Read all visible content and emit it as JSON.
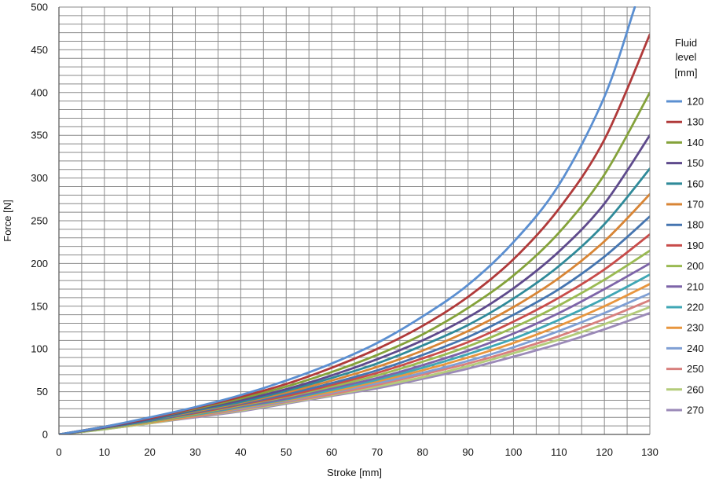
{
  "chart_data": {
    "type": "line",
    "title": "",
    "xlabel": "Stroke [mm]",
    "ylabel": "Force [N]",
    "xlim": [
      0,
      130
    ],
    "ylim": [
      0,
      500
    ],
    "xticks": [
      0,
      10,
      20,
      30,
      40,
      50,
      60,
      70,
      80,
      90,
      100,
      110,
      120,
      130
    ],
    "yticks": [
      0,
      50,
      100,
      150,
      200,
      250,
      300,
      350,
      400,
      450,
      500
    ],
    "grid": true,
    "legend_title": [
      "Fluid",
      "level",
      "[mm]"
    ],
    "legend_position": "right",
    "series": [
      {
        "name": "120",
        "color": "#5b8fd1",
        "x": [
          0,
          10,
          20,
          30,
          40,
          50,
          60,
          70,
          80,
          90,
          100,
          110,
          120,
          126.7
        ],
        "y": [
          0,
          9,
          20,
          32,
          46,
          63,
          83,
          107,
          138,
          175,
          225,
          292,
          395,
          500
        ]
      },
      {
        "name": "130",
        "color": "#b03a3a",
        "x": [
          0,
          10,
          20,
          30,
          40,
          50,
          60,
          70,
          80,
          90,
          100,
          110,
          120,
          130
        ],
        "y": [
          0,
          9,
          19,
          31,
          44,
          59,
          78,
          100,
          127,
          161,
          205,
          264,
          345,
          468
        ]
      },
      {
        "name": "140",
        "color": "#84a23a",
        "x": [
          0,
          10,
          20,
          30,
          40,
          50,
          60,
          70,
          80,
          90,
          100,
          110,
          120,
          130
        ],
        "y": [
          0,
          9,
          19,
          30,
          42,
          56,
          73,
          93,
          117,
          148,
          186,
          236,
          304,
          400
        ]
      },
      {
        "name": "150",
        "color": "#5e4a8c",
        "x": [
          0,
          10,
          20,
          30,
          40,
          50,
          60,
          70,
          80,
          90,
          100,
          110,
          120,
          130
        ],
        "y": [
          0,
          8,
          18,
          29,
          40,
          53,
          69,
          88,
          110,
          137,
          171,
          214,
          270,
          350
        ]
      },
      {
        "name": "160",
        "color": "#2f8a99",
        "x": [
          0,
          10,
          20,
          30,
          40,
          50,
          60,
          70,
          80,
          90,
          100,
          110,
          120,
          130
        ],
        "y": [
          0,
          8,
          17,
          28,
          38,
          51,
          66,
          83,
          104,
          128,
          159,
          197,
          246,
          311
        ]
      },
      {
        "name": "170",
        "color": "#d88535",
        "x": [
          0,
          10,
          20,
          30,
          40,
          50,
          60,
          70,
          80,
          90,
          100,
          110,
          120,
          130
        ],
        "y": [
          0,
          8,
          17,
          27,
          37,
          49,
          63,
          79,
          98,
          121,
          149,
          183,
          226,
          281
        ]
      },
      {
        "name": "180",
        "color": "#4575b0",
        "x": [
          0,
          10,
          20,
          30,
          40,
          50,
          60,
          70,
          80,
          90,
          100,
          110,
          120,
          130
        ],
        "y": [
          0,
          8,
          16,
          26,
          36,
          47,
          60,
          75,
          93,
          114,
          140,
          170,
          208,
          255
        ]
      },
      {
        "name": "190",
        "color": "#c84c4a",
        "x": [
          0,
          10,
          20,
          30,
          40,
          50,
          60,
          70,
          80,
          90,
          100,
          110,
          120,
          130
        ],
        "y": [
          0,
          8,
          16,
          25,
          35,
          45,
          58,
          72,
          89,
          108,
          132,
          160,
          193,
          234
        ]
      },
      {
        "name": "200",
        "color": "#9aba52",
        "x": [
          0,
          10,
          20,
          30,
          40,
          50,
          60,
          70,
          80,
          90,
          100,
          110,
          120,
          130
        ],
        "y": [
          0,
          7,
          15,
          24,
          34,
          44,
          56,
          69,
          85,
          103,
          125,
          151,
          181,
          215
        ]
      },
      {
        "name": "210",
        "color": "#7d64a8",
        "x": [
          0,
          10,
          20,
          30,
          40,
          50,
          60,
          70,
          80,
          90,
          100,
          110,
          120,
          130
        ],
        "y": [
          0,
          7,
          15,
          24,
          33,
          42,
          54,
          66,
          81,
          98,
          118,
          142,
          170,
          200
        ]
      },
      {
        "name": "220",
        "color": "#3fa7b5",
        "x": [
          0,
          10,
          20,
          30,
          40,
          50,
          60,
          70,
          80,
          90,
          100,
          110,
          120,
          130
        ],
        "y": [
          0,
          7,
          15,
          23,
          32,
          41,
          52,
          64,
          78,
          94,
          112,
          134,
          159,
          187
        ]
      },
      {
        "name": "230",
        "color": "#e8963e",
        "x": [
          0,
          10,
          20,
          30,
          40,
          50,
          60,
          70,
          80,
          90,
          100,
          110,
          120,
          130
        ],
        "y": [
          0,
          7,
          14,
          22,
          31,
          40,
          50,
          62,
          75,
          90,
          107,
          127,
          150,
          176
        ]
      },
      {
        "name": "240",
        "color": "#7f9fd4",
        "x": [
          0,
          10,
          20,
          30,
          40,
          50,
          60,
          70,
          80,
          90,
          100,
          110,
          120,
          130
        ],
        "y": [
          0,
          7,
          14,
          22,
          30,
          39,
          49,
          60,
          72,
          86,
          102,
          121,
          142,
          165
        ]
      },
      {
        "name": "250",
        "color": "#d8807e",
        "x": [
          0,
          10,
          20,
          30,
          40,
          50,
          60,
          70,
          80,
          90,
          100,
          110,
          120,
          130
        ],
        "y": [
          0,
          7,
          14,
          21,
          29,
          38,
          47,
          58,
          70,
          83,
          98,
          115,
          135,
          157
        ]
      },
      {
        "name": "260",
        "color": "#b4cc7a",
        "x": [
          0,
          10,
          20,
          30,
          40,
          50,
          60,
          70,
          80,
          90,
          100,
          110,
          120,
          130
        ],
        "y": [
          0,
          6,
          13,
          21,
          28,
          37,
          46,
          56,
          67,
          80,
          95,
          111,
          129,
          149
        ]
      },
      {
        "name": "270",
        "color": "#9b8ab8",
        "x": [
          0,
          10,
          20,
          30,
          40,
          50,
          60,
          70,
          80,
          90,
          100,
          110,
          120,
          130
        ],
        "y": [
          0,
          6,
          13,
          20,
          27,
          36,
          45,
          54,
          65,
          77,
          91,
          106,
          123,
          142
        ]
      }
    ]
  }
}
